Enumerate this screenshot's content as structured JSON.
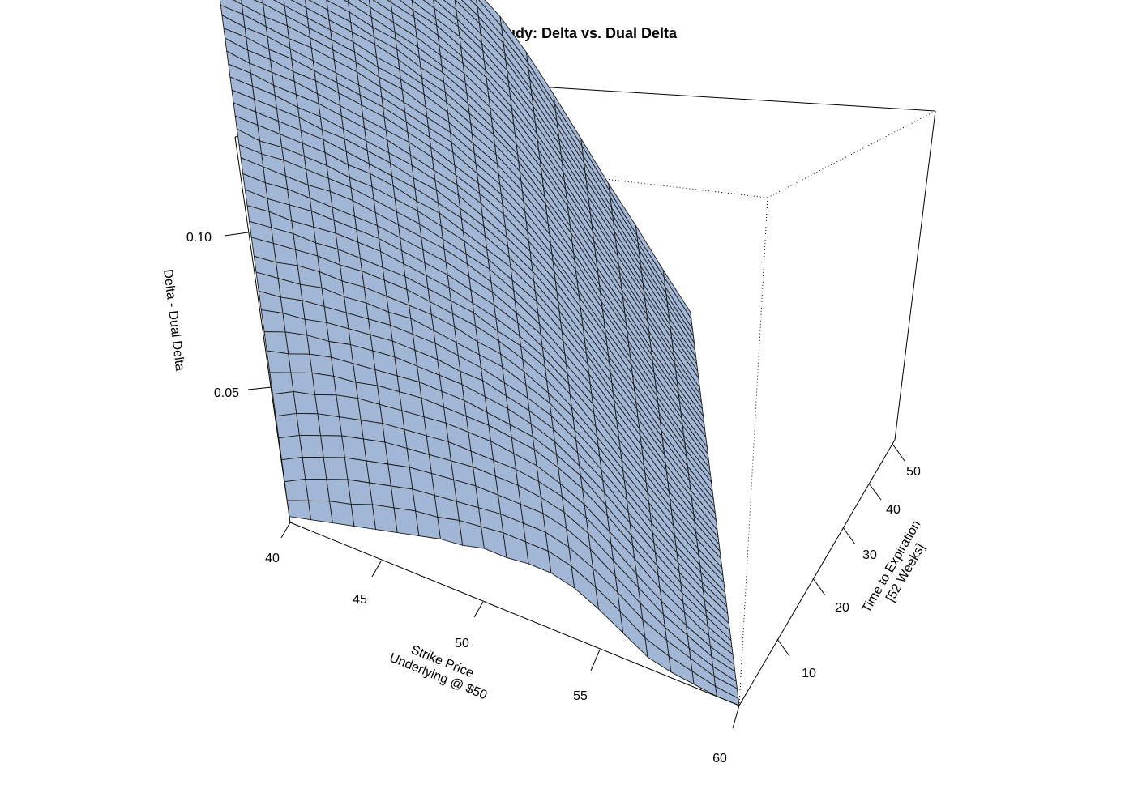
{
  "chart_data": {
    "type": "surface",
    "title": "Study: Delta vs. Dual Delta",
    "xlabel": "Strike Price\nUnderlying @ $50",
    "ylabel": "Time to Expiration\n[52 Weeks]",
    "zlabel": "Delta - Dual Delta",
    "xlim": [
      40,
      60
    ],
    "ylim": [
      1,
      52
    ],
    "zlim": [
      0.0,
      0.13
    ],
    "x_ticks": [
      "40",
      "45",
      "50",
      "55",
      "60"
    ],
    "y_ticks": [
      "10",
      "20",
      "30",
      "40",
      "50"
    ],
    "z_ticks": [
      "0.05",
      "0.10"
    ],
    "surface_color": "#a2b6d6",
    "grid_x": [
      40,
      41,
      42,
      43,
      44,
      45,
      46,
      47,
      48,
      49,
      50,
      51,
      52,
      53,
      54,
      55,
      56,
      57,
      58,
      59,
      60
    ],
    "grid_y": [
      1,
      2,
      3,
      4,
      5,
      6,
      7,
      8,
      9,
      10,
      11,
      12,
      13,
      14,
      15,
      16,
      17,
      18,
      19,
      20,
      21,
      22,
      23,
      24,
      25,
      26,
      27,
      28,
      29,
      30,
      31,
      32,
      33,
      34,
      35,
      36,
      37,
      38,
      39,
      40,
      41,
      42,
      43,
      44,
      45,
      46,
      47,
      48,
      49,
      50,
      51,
      52
    ],
    "z_by_strike": [
      [
        0.002,
        0.005,
        0.009,
        0.014,
        0.019,
        0.024,
        0.029,
        0.034,
        0.039,
        0.043,
        0.048,
        0.052,
        0.056,
        0.059,
        0.063,
        0.066,
        0.069,
        0.072,
        0.075,
        0.078,
        0.08,
        0.083,
        0.085,
        0.087,
        0.089,
        0.091,
        0.093,
        0.095,
        0.097,
        0.098,
        0.1,
        0.101,
        0.103,
        0.104,
        0.105,
        0.107,
        0.108,
        0.109,
        0.11,
        0.111,
        0.112,
        0.113,
        0.114,
        0.115,
        0.116,
        0.117,
        0.118,
        0.119,
        0.12,
        0.12,
        0.121,
        0.122
      ],
      [
        0.004,
        0.008,
        0.013,
        0.018,
        0.023,
        0.028,
        0.033,
        0.037,
        0.041,
        0.046,
        0.05,
        0.053,
        0.057,
        0.06,
        0.064,
        0.067,
        0.07,
        0.072,
        0.075,
        0.078,
        0.08,
        0.082,
        0.085,
        0.087,
        0.089,
        0.091,
        0.093,
        0.094,
        0.096,
        0.098,
        0.099,
        0.101,
        0.102,
        0.103,
        0.105,
        0.106,
        0.107,
        0.108,
        0.109,
        0.11,
        0.111,
        0.112,
        0.113,
        0.114,
        0.115,
        0.116,
        0.117,
        0.118,
        0.118,
        0.119,
        0.12,
        0.121
      ],
      [
        0.006,
        0.011,
        0.016,
        0.021,
        0.026,
        0.031,
        0.035,
        0.04,
        0.044,
        0.048,
        0.051,
        0.055,
        0.058,
        0.062,
        0.065,
        0.068,
        0.07,
        0.073,
        0.076,
        0.078,
        0.081,
        0.083,
        0.085,
        0.087,
        0.089,
        0.091,
        0.092,
        0.094,
        0.096,
        0.097,
        0.099,
        0.1,
        0.101,
        0.103,
        0.104,
        0.105,
        0.106,
        0.107,
        0.108,
        0.109,
        0.11,
        0.111,
        0.112,
        0.113,
        0.114,
        0.115,
        0.116,
        0.116,
        0.117,
        0.118,
        0.119,
        0.119
      ],
      [
        0.008,
        0.013,
        0.019,
        0.024,
        0.029,
        0.033,
        0.038,
        0.042,
        0.046,
        0.049,
        0.053,
        0.056,
        0.06,
        0.063,
        0.066,
        0.068,
        0.071,
        0.074,
        0.076,
        0.078,
        0.081,
        0.083,
        0.085,
        0.087,
        0.089,
        0.09,
        0.092,
        0.094,
        0.095,
        0.097,
        0.098,
        0.099,
        0.101,
        0.102,
        0.103,
        0.104,
        0.105,
        0.106,
        0.107,
        0.108,
        0.109,
        0.11,
        0.111,
        0.112,
        0.113,
        0.114,
        0.114,
        0.115,
        0.116,
        0.117,
        0.117,
        0.118
      ],
      [
        0.01,
        0.016,
        0.021,
        0.026,
        0.031,
        0.035,
        0.04,
        0.043,
        0.047,
        0.051,
        0.054,
        0.057,
        0.06,
        0.063,
        0.066,
        0.069,
        0.072,
        0.074,
        0.076,
        0.079,
        0.081,
        0.083,
        0.085,
        0.087,
        0.088,
        0.09,
        0.092,
        0.093,
        0.095,
        0.096,
        0.097,
        0.099,
        0.1,
        0.101,
        0.102,
        0.103,
        0.104,
        0.105,
        0.106,
        0.107,
        0.108,
        0.109,
        0.11,
        0.111,
        0.112,
        0.112,
        0.113,
        0.114,
        0.115,
        0.115,
        0.116,
        0.117
      ],
      [
        0.012,
        0.018,
        0.023,
        0.028,
        0.033,
        0.037,
        0.041,
        0.045,
        0.048,
        0.052,
        0.055,
        0.058,
        0.061,
        0.064,
        0.067,
        0.069,
        0.072,
        0.074,
        0.076,
        0.079,
        0.081,
        0.082,
        0.084,
        0.086,
        0.088,
        0.089,
        0.091,
        0.092,
        0.094,
        0.095,
        0.096,
        0.098,
        0.099,
        0.1,
        0.101,
        0.102,
        0.103,
        0.104,
        0.105,
        0.106,
        0.107,
        0.108,
        0.109,
        0.11,
        0.11,
        0.111,
        0.112,
        0.113,
        0.113,
        0.114,
        0.115,
        0.115
      ],
      [
        0.014,
        0.02,
        0.025,
        0.03,
        0.034,
        0.038,
        0.042,
        0.046,
        0.049,
        0.053,
        0.056,
        0.059,
        0.061,
        0.064,
        0.067,
        0.069,
        0.072,
        0.074,
        0.076,
        0.078,
        0.08,
        0.082,
        0.084,
        0.085,
        0.087,
        0.088,
        0.09,
        0.091,
        0.093,
        0.094,
        0.095,
        0.097,
        0.098,
        0.099,
        0.1,
        0.101,
        0.102,
        0.103,
        0.104,
        0.105,
        0.106,
        0.107,
        0.107,
        0.108,
        0.109,
        0.11,
        0.11,
        0.111,
        0.112,
        0.113,
        0.113,
        0.114
      ],
      [
        0.016,
        0.021,
        0.026,
        0.031,
        0.035,
        0.039,
        0.043,
        0.047,
        0.05,
        0.053,
        0.056,
        0.059,
        0.062,
        0.064,
        0.067,
        0.069,
        0.071,
        0.073,
        0.075,
        0.077,
        0.079,
        0.081,
        0.083,
        0.084,
        0.086,
        0.087,
        0.089,
        0.09,
        0.092,
        0.093,
        0.094,
        0.095,
        0.096,
        0.097,
        0.098,
        0.1,
        0.1,
        0.101,
        0.102,
        0.103,
        0.104,
        0.105,
        0.106,
        0.107,
        0.107,
        0.108,
        0.109,
        0.109,
        0.11,
        0.111,
        0.111,
        0.112
      ],
      [
        0.017,
        0.023,
        0.027,
        0.032,
        0.036,
        0.04,
        0.044,
        0.047,
        0.05,
        0.053,
        0.056,
        0.059,
        0.061,
        0.064,
        0.066,
        0.068,
        0.07,
        0.072,
        0.074,
        0.076,
        0.078,
        0.08,
        0.081,
        0.083,
        0.084,
        0.086,
        0.087,
        0.089,
        0.09,
        0.091,
        0.092,
        0.093,
        0.095,
        0.096,
        0.097,
        0.098,
        0.099,
        0.1,
        0.1,
        0.101,
        0.102,
        0.103,
        0.104,
        0.104,
        0.105,
        0.106,
        0.107,
        0.107,
        0.108,
        0.109,
        0.109,
        0.11
      ],
      [
        0.019,
        0.024,
        0.028,
        0.033,
        0.037,
        0.04,
        0.044,
        0.047,
        0.05,
        0.053,
        0.055,
        0.058,
        0.06,
        0.063,
        0.065,
        0.067,
        0.069,
        0.071,
        0.073,
        0.075,
        0.076,
        0.078,
        0.08,
        0.081,
        0.083,
        0.084,
        0.085,
        0.087,
        0.088,
        0.089,
        0.09,
        0.091,
        0.092,
        0.094,
        0.095,
        0.095,
        0.096,
        0.097,
        0.098,
        0.099,
        0.1,
        0.101,
        0.101,
        0.102,
        0.103,
        0.104,
        0.104,
        0.105,
        0.106,
        0.106,
        0.107,
        0.107
      ],
      [
        0.019,
        0.025,
        0.029,
        0.033,
        0.037,
        0.04,
        0.044,
        0.047,
        0.049,
        0.052,
        0.055,
        0.057,
        0.059,
        0.061,
        0.064,
        0.066,
        0.067,
        0.069,
        0.071,
        0.073,
        0.074,
        0.076,
        0.077,
        0.079,
        0.08,
        0.082,
        0.083,
        0.084,
        0.085,
        0.087,
        0.088,
        0.089,
        0.09,
        0.091,
        0.092,
        0.093,
        0.094,
        0.095,
        0.095,
        0.096,
        0.097,
        0.098,
        0.099,
        0.099,
        0.1,
        0.101,
        0.101,
        0.102,
        0.103,
        0.103,
        0.104,
        0.105
      ],
      [
        0.02,
        0.025,
        0.029,
        0.033,
        0.037,
        0.04,
        0.043,
        0.046,
        0.048,
        0.051,
        0.053,
        0.055,
        0.058,
        0.06,
        0.062,
        0.063,
        0.065,
        0.067,
        0.069,
        0.07,
        0.072,
        0.073,
        0.074,
        0.076,
        0.077,
        0.078,
        0.08,
        0.081,
        0.082,
        0.083,
        0.084,
        0.085,
        0.086,
        0.087,
        0.088,
        0.089,
        0.09,
        0.091,
        0.092,
        0.093,
        0.094,
        0.094,
        0.095,
        0.096,
        0.097,
        0.097,
        0.098,
        0.099,
        0.099,
        0.1,
        0.1,
        0.101
      ],
      [
        0.02,
        0.025,
        0.029,
        0.033,
        0.036,
        0.039,
        0.042,
        0.045,
        0.047,
        0.049,
        0.051,
        0.053,
        0.055,
        0.057,
        0.059,
        0.061,
        0.062,
        0.064,
        0.065,
        0.067,
        0.068,
        0.069,
        0.071,
        0.072,
        0.073,
        0.074,
        0.075,
        0.077,
        0.078,
        0.079,
        0.08,
        0.081,
        0.082,
        0.083,
        0.084,
        0.085,
        0.085,
        0.086,
        0.087,
        0.088,
        0.089,
        0.09,
        0.09,
        0.091,
        0.092,
        0.092,
        0.093,
        0.094,
        0.094,
        0.095,
        0.096,
        0.096
      ],
      [
        0.018,
        0.023,
        0.027,
        0.031,
        0.034,
        0.037,
        0.039,
        0.042,
        0.044,
        0.046,
        0.048,
        0.05,
        0.052,
        0.053,
        0.055,
        0.057,
        0.058,
        0.059,
        0.061,
        0.062,
        0.063,
        0.065,
        0.066,
        0.067,
        0.068,
        0.069,
        0.07,
        0.071,
        0.072,
        0.073,
        0.074,
        0.075,
        0.076,
        0.077,
        0.078,
        0.079,
        0.079,
        0.08,
        0.081,
        0.082,
        0.083,
        0.083,
        0.084,
        0.085,
        0.085,
        0.086,
        0.087,
        0.087,
        0.088,
        0.088,
        0.089,
        0.09
      ],
      [
        0.014,
        0.019,
        0.023,
        0.027,
        0.03,
        0.033,
        0.035,
        0.038,
        0.04,
        0.041,
        0.043,
        0.045,
        0.046,
        0.048,
        0.049,
        0.051,
        0.052,
        0.053,
        0.054,
        0.055,
        0.057,
        0.058,
        0.059,
        0.06,
        0.061,
        0.062,
        0.063,
        0.064,
        0.065,
        0.065,
        0.066,
        0.067,
        0.068,
        0.069,
        0.07,
        0.07,
        0.071,
        0.072,
        0.073,
        0.073,
        0.074,
        0.075,
        0.075,
        0.076,
        0.077,
        0.077,
        0.078,
        0.078,
        0.079,
        0.08,
        0.08,
        0.081
      ],
      [
        0.009,
        0.014,
        0.018,
        0.021,
        0.024,
        0.027,
        0.029,
        0.032,
        0.033,
        0.035,
        0.037,
        0.038,
        0.04,
        0.041,
        0.042,
        0.043,
        0.045,
        0.046,
        0.047,
        0.048,
        0.049,
        0.05,
        0.051,
        0.051,
        0.052,
        0.053,
        0.054,
        0.055,
        0.056,
        0.056,
        0.057,
        0.058,
        0.059,
        0.059,
        0.06,
        0.061,
        0.061,
        0.062,
        0.063,
        0.063,
        0.064,
        0.064,
        0.065,
        0.066,
        0.066,
        0.067,
        0.067,
        0.068,
        0.068,
        0.069,
        0.069,
        0.07
      ],
      [
        0.004,
        0.008,
        0.012,
        0.015,
        0.018,
        0.02,
        0.023,
        0.025,
        0.026,
        0.028,
        0.029,
        0.031,
        0.032,
        0.033,
        0.034,
        0.035,
        0.036,
        0.037,
        0.038,
        0.039,
        0.04,
        0.041,
        0.041,
        0.042,
        0.043,
        0.044,
        0.044,
        0.045,
        0.046,
        0.046,
        0.047,
        0.048,
        0.048,
        0.049,
        0.049,
        0.05,
        0.05,
        0.051,
        0.052,
        0.052,
        0.053,
        0.053,
        0.054,
        0.054,
        0.055,
        0.055,
        0.056,
        0.056,
        0.057,
        0.057,
        0.058,
        0.058
      ],
      [
        0.002,
        0.005,
        0.008,
        0.01,
        0.012,
        0.014,
        0.016,
        0.018,
        0.019,
        0.021,
        0.022,
        0.023,
        0.024,
        0.025,
        0.026,
        0.027,
        0.028,
        0.029,
        0.029,
        0.03,
        0.031,
        0.032,
        0.032,
        0.033,
        0.034,
        0.034,
        0.035,
        0.035,
        0.036,
        0.037,
        0.037,
        0.038,
        0.038,
        0.039,
        0.039,
        0.04,
        0.04,
        0.041,
        0.041,
        0.042,
        0.042,
        0.042,
        0.043,
        0.043,
        0.044,
        0.044,
        0.045,
        0.045,
        0.045,
        0.046,
        0.046,
        0.046
      ],
      [
        0.001,
        0.003,
        0.005,
        0.006,
        0.008,
        0.009,
        0.011,
        0.012,
        0.013,
        0.014,
        0.015,
        0.016,
        0.017,
        0.017,
        0.018,
        0.019,
        0.02,
        0.02,
        0.021,
        0.021,
        0.022,
        0.023,
        0.023,
        0.024,
        0.024,
        0.025,
        0.025,
        0.026,
        0.026,
        0.027,
        0.027,
        0.027,
        0.028,
        0.028,
        0.029,
        0.029,
        0.029,
        0.03,
        0.03,
        0.031,
        0.031,
        0.031,
        0.032,
        0.032,
        0.032,
        0.033,
        0.033,
        0.033,
        0.034,
        0.034,
        0.034,
        0.035
      ],
      [
        0.0,
        0.001,
        0.002,
        0.003,
        0.004,
        0.005,
        0.006,
        0.007,
        0.008,
        0.008,
        0.009,
        0.01,
        0.01,
        0.011,
        0.011,
        0.012,
        0.012,
        0.013,
        0.013,
        0.014,
        0.014,
        0.014,
        0.015,
        0.015,
        0.016,
        0.016,
        0.016,
        0.017,
        0.017,
        0.017,
        0.017,
        0.018,
        0.018,
        0.018,
        0.019,
        0.019,
        0.019,
        0.019,
        0.02,
        0.02,
        0.02,
        0.02,
        0.021,
        0.021,
        0.021,
        0.021,
        0.022,
        0.022,
        0.022,
        0.022,
        0.023,
        0.023
      ],
      [
        0.0,
        0.0,
        0.001,
        0.001,
        0.002,
        0.002,
        0.003,
        0.003,
        0.003,
        0.004,
        0.004,
        0.005,
        0.005,
        0.005,
        0.005,
        0.006,
        0.006,
        0.006,
        0.007,
        0.007,
        0.007,
        0.007,
        0.007,
        0.008,
        0.008,
        0.008,
        0.008,
        0.008,
        0.009,
        0.009,
        0.009,
        0.009,
        0.009,
        0.009,
        0.01,
        0.01,
        0.01,
        0.01,
        0.01,
        0.01,
        0.01,
        0.01,
        0.011,
        0.011,
        0.011,
        0.011,
        0.011,
        0.011,
        0.011,
        0.011,
        0.012,
        0.012
      ]
    ]
  }
}
